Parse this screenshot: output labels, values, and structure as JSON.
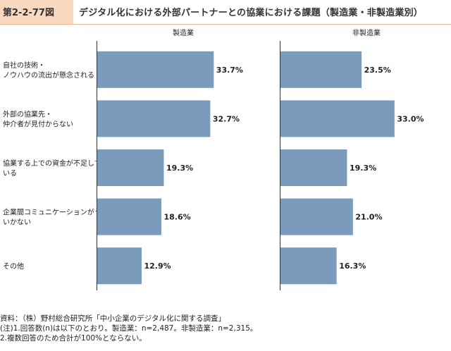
{
  "figure": {
    "number": "第2-2-77図",
    "title": "デジタル化における外部パートナーとの協業における課題（製造業・非製造業別）"
  },
  "chart_data": [
    {
      "type": "bar",
      "orientation": "horizontal",
      "title": "製造業",
      "categories": [
        [
          "自社の技術・",
          "ノウハウの流出が懸念される"
        ],
        [
          "外部の協業先・",
          "仲介者が見付からない"
        ],
        [
          "協業する上での資金が不足して",
          "いる"
        ],
        [
          "企業間コミュニケーションがうまく",
          "いかない"
        ],
        [
          "その他"
        ]
      ],
      "values": [
        33.7,
        32.7,
        19.3,
        18.6,
        12.9
      ],
      "data_labels": [
        "33.7%",
        "32.7%",
        "19.3%",
        "18.6%",
        "12.9%"
      ],
      "xlim": [
        0,
        50
      ],
      "ticks": [
        "0%",
        "10%",
        "20%",
        "30%",
        "40%",
        "50%"
      ],
      "grid": false
    },
    {
      "type": "bar",
      "orientation": "horizontal",
      "title": "非製造業",
      "categories": [
        [
          "自社の技術・",
          "ノウハウの流出が懸念される"
        ],
        [
          "外部の協業先・",
          "仲介者が見付からない"
        ],
        [
          "協業する上での資金が不足して",
          "いる"
        ],
        [
          "企業間コミュニケーションがうまく",
          "いかない"
        ],
        [
          "その他"
        ]
      ],
      "values": [
        23.5,
        33.0,
        19.3,
        21.0,
        16.3
      ],
      "data_labels": [
        "23.5%",
        "33.0%",
        "19.3%",
        "21.0%",
        "16.3%"
      ],
      "xlim": [
        0,
        50
      ],
      "ticks": [
        "0%",
        "10%",
        "20%",
        "30%",
        "40%",
        "50%"
      ],
      "grid": false
    }
  ],
  "colors": {
    "bar": "#7b9bbd",
    "badge": "#f8d9c0"
  },
  "notes": [
    "資料：（株）野村総合研究所「中小企業のデジタル化に関する調査」",
    "(注)1.回答数(n)は以下のとおり。製造業：n=2,487。非製造業：n=2,315。",
    "2.複数回答のため合計が100%とならない。"
  ]
}
